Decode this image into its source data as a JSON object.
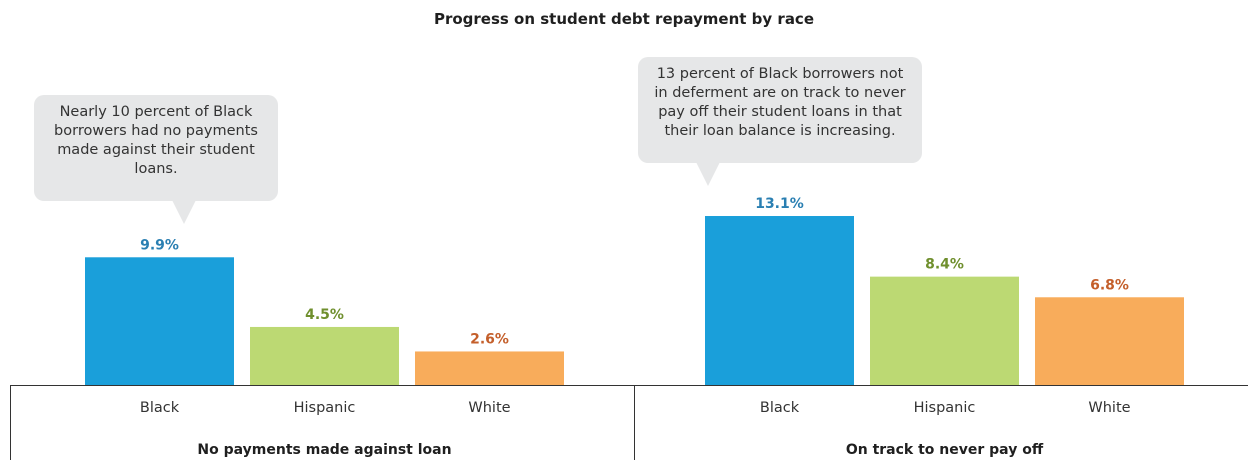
{
  "title": "Progress on student debt repayment by race",
  "colors": {
    "Black": "#1a9fda",
    "Hispanic": "#bcd973",
    "White": "#f8ac5b",
    "label_Black": "#2a7fb2",
    "label_Hispanic": "#6f8f2d",
    "label_White": "#c45f2b"
  },
  "callouts": [
    {
      "text": "Nearly 10 percent of Black borrowers had no payments made against their student loans."
    },
    {
      "text": "13 percent of Black borrowers not in deferment are on track to never pay off their student loans in that their loan balance is increasing."
    }
  ],
  "chart_data": [
    {
      "type": "bar",
      "title": "No payments made against loan",
      "categories": [
        "Black",
        "Hispanic",
        "White"
      ],
      "values": [
        9.9,
        4.5,
        2.6
      ],
      "labels": [
        "9.9%",
        "4.5%",
        "2.6%"
      ],
      "ylim": [
        0,
        14.2
      ],
      "grid": false
    },
    {
      "type": "bar",
      "title": "On track to never pay off",
      "categories": [
        "Black",
        "Hispanic",
        "White"
      ],
      "values": [
        13.1,
        8.4,
        6.8
      ],
      "labels": [
        "13.1%",
        "8.4%",
        "6.8%"
      ],
      "ylim": [
        0,
        14.2
      ],
      "grid": false
    }
  ]
}
